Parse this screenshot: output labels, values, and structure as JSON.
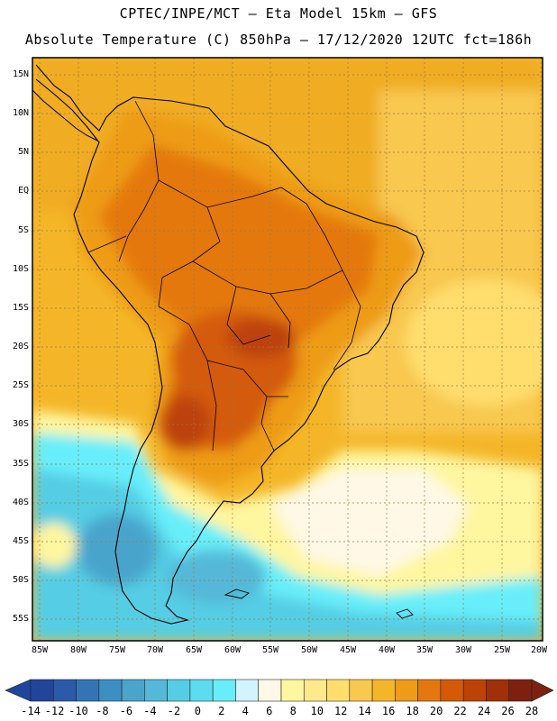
{
  "header": {
    "line1": "CPTEC/INPE/MCT –  Eta Model 15km – GFS",
    "line2": "Absolute Temperature (C) 850hPa – 17/12/2020 12UTC fct=186h"
  },
  "map": {
    "lat_labels": [
      "15N",
      "10N",
      "5N",
      "EQ",
      "5S",
      "10S",
      "15S",
      "20S",
      "25S",
      "30S",
      "35S",
      "40S",
      "45S",
      "50S",
      "55S"
    ],
    "lon_labels": [
      "85W",
      "80W",
      "75W",
      "70W",
      "65W",
      "60W",
      "55W",
      "50W",
      "45W",
      "40W",
      "35W",
      "30W",
      "25W",
      "20W"
    ]
  },
  "colorbar": {
    "labels": [
      "-14",
      "-12",
      "-10",
      "-8",
      "-6",
      "-4",
      "-2",
      "0",
      "2",
      "4",
      "6",
      "8",
      "10",
      "12",
      "14",
      "16",
      "18",
      "20",
      "22",
      "24",
      "26",
      "28"
    ],
    "colors": [
      "#21459a",
      "#2a5aa8",
      "#3474b5",
      "#3d8ec2",
      "#4aa4cc",
      "#55b8d8",
      "#55cde4",
      "#5cdcee",
      "#68eefa",
      "#d2f4fc",
      "#fff8e6",
      "#fff6a0",
      "#ffe98c",
      "#ffde6e",
      "#f8c850",
      "#f4b628",
      "#ee9b16",
      "#e4780e",
      "#d45a08",
      "#bd4208",
      "#a0300a",
      "#7e2010"
    ]
  }
}
